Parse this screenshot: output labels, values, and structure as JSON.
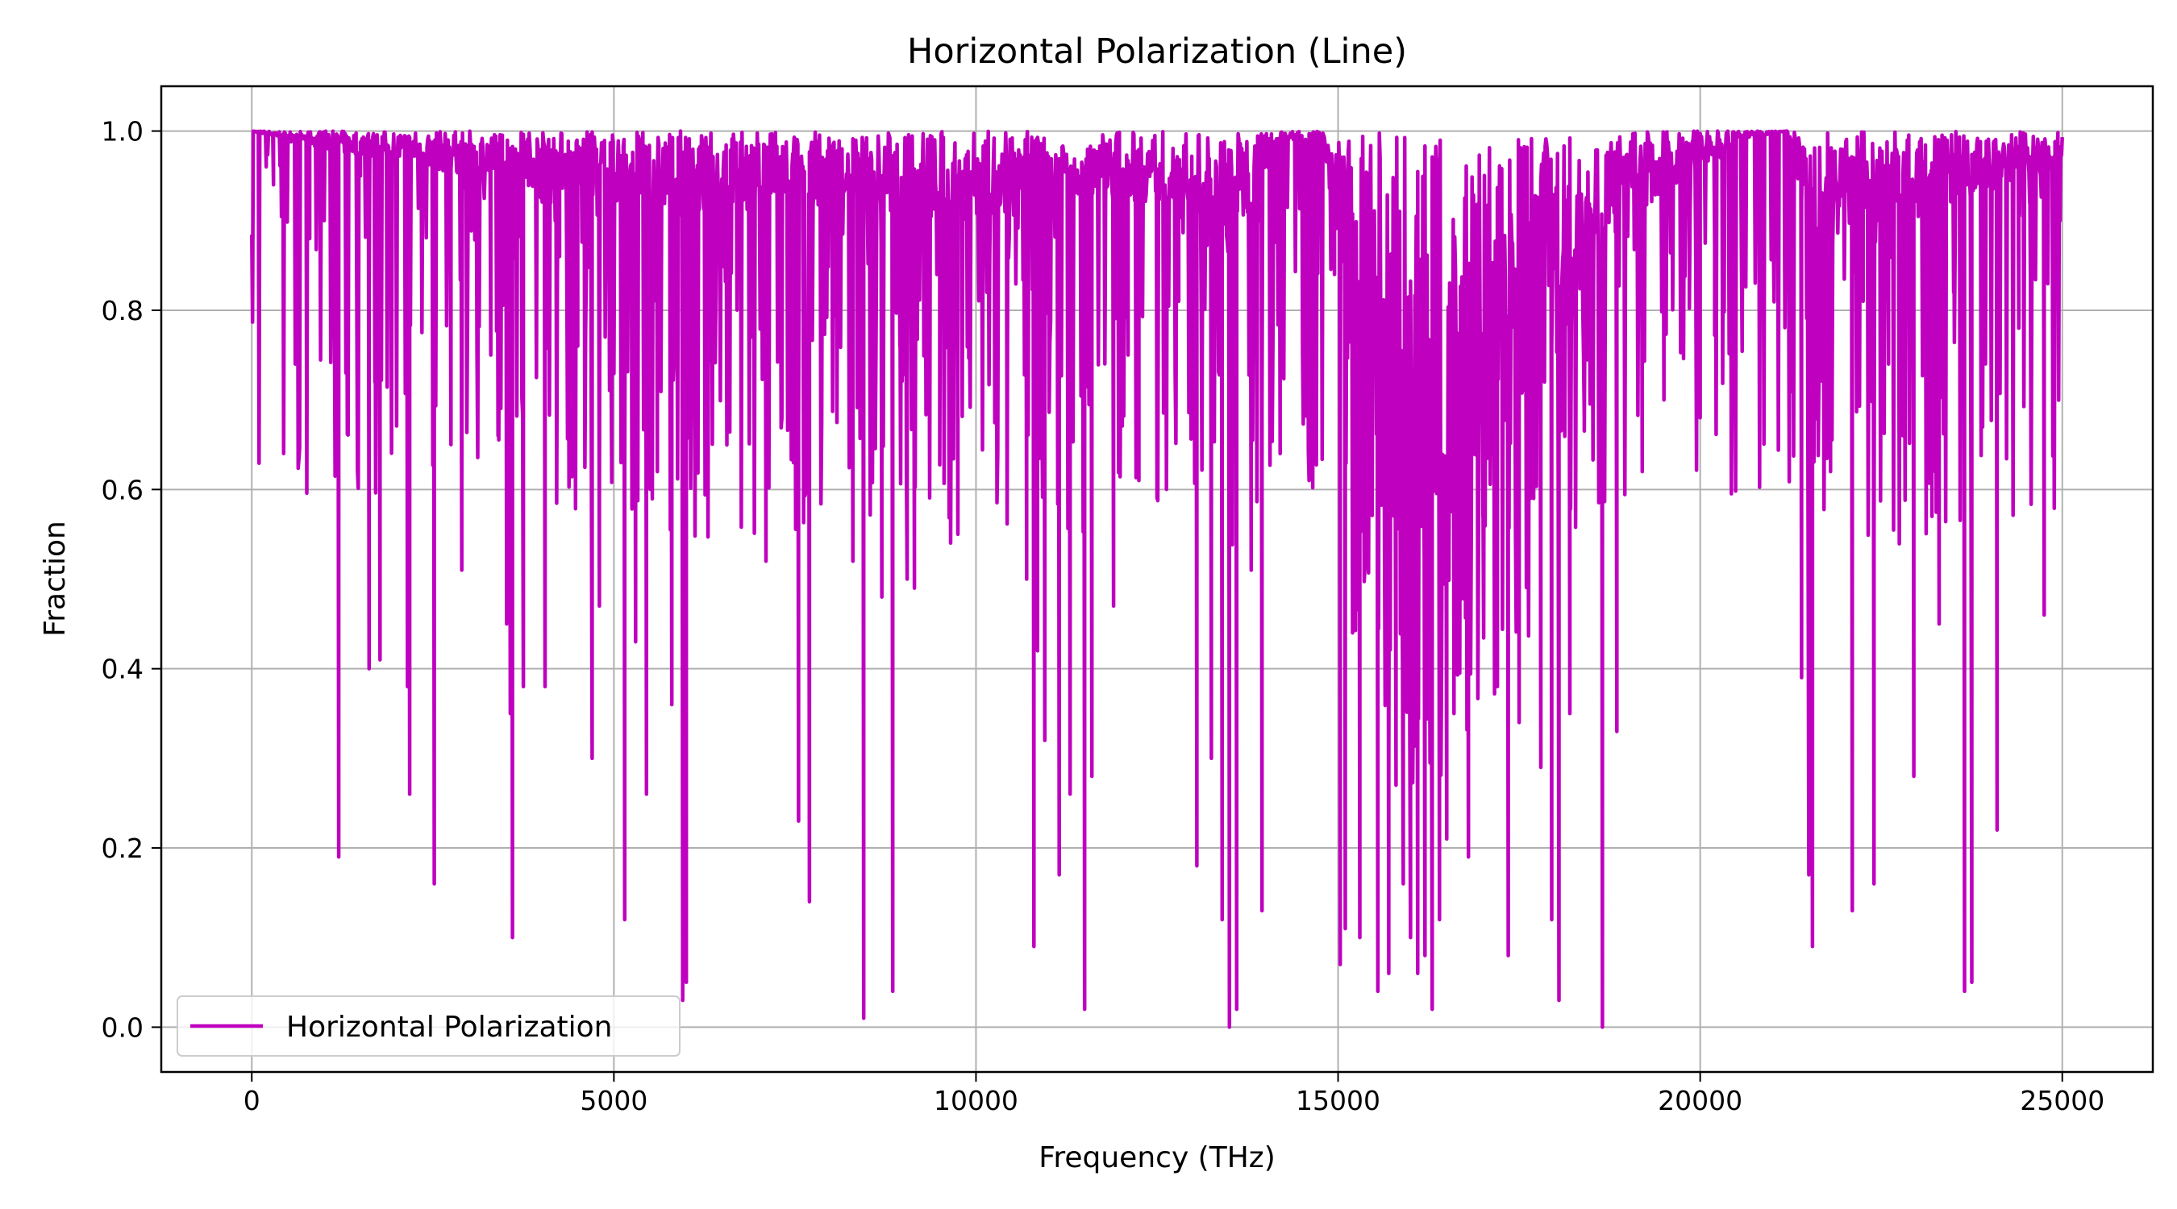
{
  "chart_data": {
    "type": "line",
    "title": "Horizontal Polarization (Line)",
    "xlabel": "Frequency (THz)",
    "ylabel": "Fraction",
    "xlim": [
      -1250,
      26250
    ],
    "ylim": [
      -0.05,
      1.05
    ],
    "xticks": [
      0,
      5000,
      10000,
      15000,
      20000,
      25000
    ],
    "xtick_labels": [
      "0",
      "5000",
      "10000",
      "15000",
      "20000",
      "25000"
    ],
    "yticks": [
      0.0,
      0.2,
      0.4,
      0.6,
      0.8,
      1.0
    ],
    "ytick_labels": [
      "0.0",
      "0.2",
      "0.4",
      "0.6",
      "0.8",
      "1.0"
    ],
    "grid": true,
    "legend_position": "lower-left",
    "series": [
      {
        "name": "Horizontal Polarization",
        "color": "#bf00bf",
        "x_range": [
          0,
          25000
        ],
        "baseline": [
          [
            0,
            1.0
          ],
          [
            1500,
            0.97
          ],
          [
            3000,
            0.95
          ],
          [
            4500,
            0.93
          ],
          [
            6000,
            0.9
          ],
          [
            7500,
            0.92
          ],
          [
            9000,
            0.9
          ],
          [
            10500,
            0.9
          ],
          [
            11000,
            0.93
          ],
          [
            12500,
            0.92
          ],
          [
            13500,
            0.86
          ],
          [
            14200,
            0.99
          ],
          [
            14800,
            0.99
          ],
          [
            15000,
            0.85
          ],
          [
            15600,
            0.5
          ],
          [
            16200,
            0.45
          ],
          [
            17000,
            0.62
          ],
          [
            18000,
            0.78
          ],
          [
            19000,
            0.9
          ],
          [
            20000,
            0.96
          ],
          [
            20500,
            0.99
          ],
          [
            21200,
            1.0
          ],
          [
            21500,
            0.88
          ],
          [
            23000,
            0.9
          ],
          [
            25000,
            0.96
          ]
        ],
        "dips": [
          [
            200,
            0.96
          ],
          [
            300,
            0.94
          ],
          [
            600,
            0.74
          ],
          [
            800,
            0.88
          ],
          [
            1000,
            0.9
          ],
          [
            1100,
            0.88
          ],
          [
            1200,
            0.19
          ],
          [
            1300,
            0.73
          ],
          [
            1500,
            0.95
          ],
          [
            1620,
            0.4
          ],
          [
            1700,
            0.72
          ],
          [
            1770,
            0.41
          ],
          [
            1900,
            0.9
          ],
          [
            2150,
            0.38
          ],
          [
            2180,
            0.26
          ],
          [
            2350,
            0.78
          ],
          [
            2520,
            0.16
          ],
          [
            2750,
            0.65
          ],
          [
            2900,
            0.51
          ],
          [
            3300,
            0.75
          ],
          [
            3400,
            0.66
          ],
          [
            3520,
            0.45
          ],
          [
            3570,
            0.35
          ],
          [
            3600,
            0.1
          ],
          [
            3750,
            0.38
          ],
          [
            4050,
            0.38
          ],
          [
            4250,
            0.86
          ],
          [
            4500,
            0.76
          ],
          [
            4700,
            0.3
          ],
          [
            4800,
            0.47
          ],
          [
            4950,
            0.72
          ],
          [
            5100,
            0.63
          ],
          [
            5150,
            0.12
          ],
          [
            5300,
            0.43
          ],
          [
            5450,
            0.26
          ],
          [
            5600,
            0.62
          ],
          [
            5800,
            0.36
          ],
          [
            5950,
            0.03
          ],
          [
            6000,
            0.05
          ],
          [
            6150,
            0.75
          ],
          [
            6400,
            0.86
          ],
          [
            6900,
            0.77
          ],
          [
            7100,
            0.52
          ],
          [
            7300,
            0.87
          ],
          [
            7480,
            0.63
          ],
          [
            7550,
            0.23
          ],
          [
            7700,
            0.14
          ],
          [
            8100,
            0.82
          ],
          [
            8300,
            0.52
          ],
          [
            8450,
            0.01
          ],
          [
            8600,
            0.79
          ],
          [
            8700,
            0.48
          ],
          [
            8850,
            0.04
          ],
          [
            8950,
            0.76
          ],
          [
            9050,
            0.5
          ],
          [
            9150,
            0.49
          ],
          [
            9300,
            0.81
          ],
          [
            9500,
            0.92
          ],
          [
            9600,
            0.85
          ],
          [
            9750,
            0.55
          ],
          [
            9900,
            0.79
          ],
          [
            10150,
            0.82
          ],
          [
            10400,
            0.91
          ],
          [
            10700,
            0.5
          ],
          [
            10800,
            0.09
          ],
          [
            10850,
            0.42
          ],
          [
            10950,
            0.32
          ],
          [
            11150,
            0.17
          ],
          [
            11300,
            0.26
          ],
          [
            11500,
            0.02
          ],
          [
            11600,
            0.28
          ],
          [
            11900,
            0.47
          ],
          [
            12100,
            0.75
          ],
          [
            12250,
            0.61
          ],
          [
            12500,
            0.59
          ],
          [
            12800,
            0.81
          ],
          [
            13050,
            0.18
          ],
          [
            13250,
            0.3
          ],
          [
            13400,
            0.12
          ],
          [
            13500,
            0.0
          ],
          [
            13600,
            0.02
          ],
          [
            13800,
            0.51
          ],
          [
            13950,
            0.13
          ],
          [
            14200,
            0.64
          ],
          [
            14600,
            0.61
          ],
          [
            14950,
            0.84
          ],
          [
            15030,
            0.07
          ],
          [
            15100,
            0.11
          ],
          [
            15200,
            0.44
          ],
          [
            15300,
            0.1
          ],
          [
            15400,
            0.58
          ],
          [
            15550,
            0.04
          ],
          [
            15700,
            0.06
          ],
          [
            15800,
            0.27
          ],
          [
            15900,
            0.16
          ],
          [
            16000,
            0.1
          ],
          [
            16100,
            0.06
          ],
          [
            16200,
            0.08
          ],
          [
            16300,
            0.02
          ],
          [
            16400,
            0.12
          ],
          [
            16500,
            0.21
          ],
          [
            16600,
            0.35
          ],
          [
            16800,
            0.19
          ],
          [
            17000,
            0.57
          ],
          [
            17200,
            0.38
          ],
          [
            17350,
            0.08
          ],
          [
            17500,
            0.34
          ],
          [
            17700,
            0.59
          ],
          [
            17800,
            0.29
          ],
          [
            17950,
            0.12
          ],
          [
            18050,
            0.03
          ],
          [
            18200,
            0.35
          ],
          [
            18400,
            0.68
          ],
          [
            18650,
            0.0
          ],
          [
            18850,
            0.33
          ],
          [
            19200,
            0.62
          ],
          [
            19500,
            0.7
          ],
          [
            19850,
            0.84
          ],
          [
            20000,
            0.68
          ],
          [
            20200,
            0.87
          ],
          [
            21200,
            0.83
          ],
          [
            21400,
            0.39
          ],
          [
            21500,
            0.17
          ],
          [
            21550,
            0.09
          ],
          [
            21800,
            0.62
          ],
          [
            22100,
            0.13
          ],
          [
            22250,
            0.81
          ],
          [
            22400,
            0.16
          ],
          [
            22600,
            0.74
          ],
          [
            22800,
            0.66
          ],
          [
            22950,
            0.28
          ],
          [
            23200,
            0.57
          ],
          [
            23300,
            0.45
          ],
          [
            23500,
            0.82
          ],
          [
            23650,
            0.04
          ],
          [
            23750,
            0.05
          ],
          [
            23900,
            0.76
          ],
          [
            24100,
            0.22
          ],
          [
            24400,
            0.78
          ],
          [
            24550,
            0.92
          ],
          [
            24750,
            0.46
          ],
          [
            24900,
            0.96
          ]
        ]
      }
    ]
  }
}
